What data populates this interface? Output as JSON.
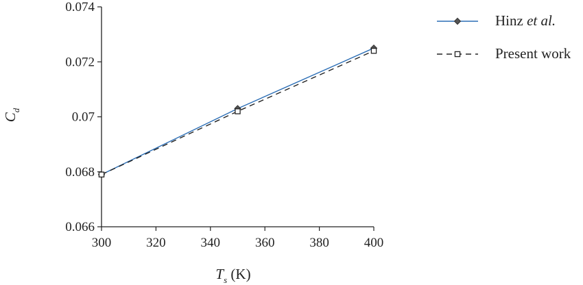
{
  "chart_data": {
    "type": "line",
    "x": [
      300,
      350,
      400
    ],
    "series": [
      {
        "name": "Hinz et al.",
        "name_prefix": "Hinz ",
        "name_italic": "et al.",
        "values": [
          0.0679,
          0.0703,
          0.0725
        ],
        "color": "#2a6db5",
        "style": "solid",
        "marker": "diamond"
      },
      {
        "name": "Present work",
        "values": [
          0.0679,
          0.0702,
          0.0724
        ],
        "color": "#222222",
        "style": "dashed",
        "marker": "square"
      }
    ],
    "xlim": [
      300,
      400
    ],
    "ylim": [
      0.066,
      0.074
    ],
    "xticks": [
      300,
      320,
      340,
      360,
      380,
      400
    ],
    "yticks": [
      0.066,
      0.068,
      0.07,
      0.072,
      0.074
    ],
    "xtick_labels": [
      "300",
      "320",
      "340",
      "360",
      "380",
      "400"
    ],
    "ytick_labels": [
      "0.066",
      "0.068",
      "0.07",
      "0.072",
      "0.074"
    ],
    "xlabel": {
      "symbol": "T",
      "subscript": "s",
      "unit": " (K)"
    },
    "ylabel": {
      "symbol": "C",
      "subscript": "d"
    },
    "grid": false,
    "legend_position": "top-right"
  }
}
